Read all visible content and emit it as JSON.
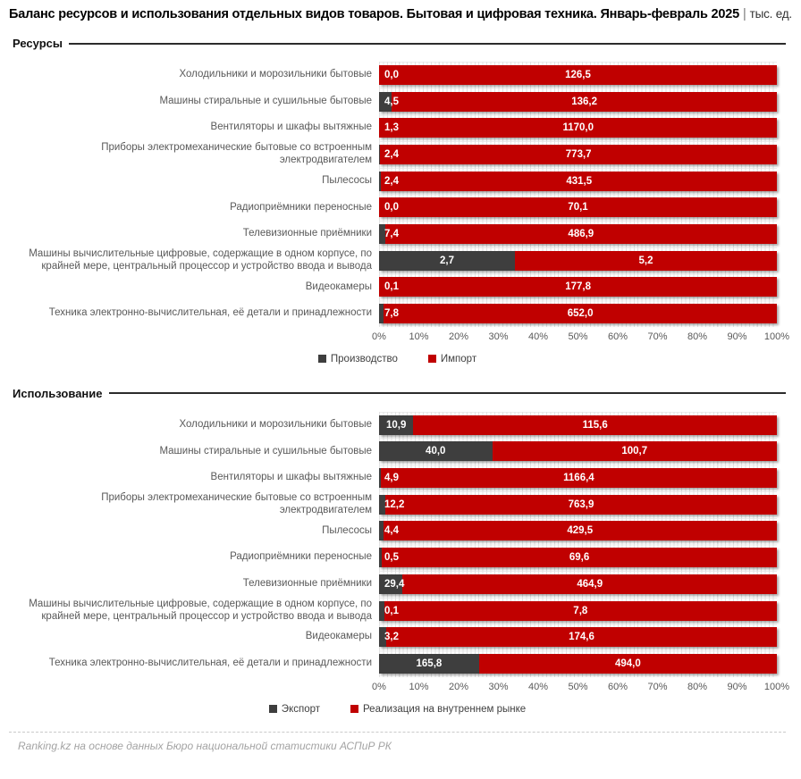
{
  "title": {
    "text": "Баланс ресурсов и использования отдельных видов товаров. Бытовая и цифровая техника. Январь-февраль 2025",
    "separator": "|",
    "unit": "тыс. ед."
  },
  "footer": {
    "source": "Ranking.kz на основе данных Бюро национальной статистики АСПиР РК"
  },
  "colors": {
    "series_dark": "#3E3E3E",
    "series_red": "#C00000",
    "category_text": "#595959",
    "axis_text": "#595959",
    "grid": "#E3E3E3"
  },
  "chart_data": [
    {
      "type": "bar",
      "orientation": "horizontal",
      "stacked": "100%",
      "section_title": "Ресурсы",
      "categories": [
        "Холодильники и морозильники бытовые",
        "Машины стиральные и сушильные бытовые",
        "Вентиляторы и шкафы вытяжные",
        "Приборы электромеханические бытовые со встроенным электродвигателем",
        "Пылесосы",
        "Радиоприёмники переносные",
        "Телевизионные приёмники",
        "Машины вычислительные цифровые, содержащие в одном корпусе, по крайней мере, центральный процессор и устройство ввода и вывода",
        "Видеокамеры",
        "Техника электронно-вычислительная, её детали и принадлежности"
      ],
      "series": [
        {
          "name": "Производство",
          "semantic": "production",
          "color": "#3E3E3E",
          "values": [
            0.0,
            4.5,
            1.3,
            2.4,
            2.4,
            0.0,
            7.4,
            2.7,
            0.1,
            7.8
          ]
        },
        {
          "name": "Импорт",
          "semantic": "import",
          "color": "#C00000",
          "values": [
            126.5,
            136.2,
            1170.0,
            773.7,
            431.5,
            70.1,
            486.9,
            5.2,
            177.8,
            652.0
          ]
        }
      ],
      "x_axis": {
        "min": 0,
        "max": 100,
        "ticks": [
          "0%",
          "10%",
          "20%",
          "30%",
          "40%",
          "50%",
          "60%",
          "70%",
          "80%",
          "90%",
          "100%"
        ]
      },
      "value_label_format": "#0,0 (comma decimal)",
      "legend_position": "bottom-center"
    },
    {
      "type": "bar",
      "orientation": "horizontal",
      "stacked": "100%",
      "section_title": "Использование",
      "categories": [
        "Холодильники и морозильники бытовые",
        "Машины стиральные и сушильные бытовые",
        "Вентиляторы и шкафы вытяжные",
        "Приборы электромеханические бытовые со встроенным электродвигателем",
        "Пылесосы",
        "Радиоприёмники переносные",
        "Телевизионные приёмники",
        "Машины вычислительные цифровые, содержащие в одном корпусе, по крайней мере, центральный процессор и устройство ввода и вывода",
        "Видеокамеры",
        "Техника электронно-вычислительная, её детали и принадлежности"
      ],
      "series": [
        {
          "name": "Экспорт",
          "semantic": "export",
          "color": "#3E3E3E",
          "values": [
            10.9,
            40.0,
            4.9,
            12.2,
            4.4,
            0.5,
            29.4,
            0.1,
            3.2,
            165.8
          ]
        },
        {
          "name": "Реализация на внутреннем рынке",
          "semantic": "domestic-sales",
          "color": "#C00000",
          "values": [
            115.6,
            100.7,
            1166.4,
            763.9,
            429.5,
            69.6,
            464.9,
            7.8,
            174.6,
            494.0
          ]
        }
      ],
      "x_axis": {
        "min": 0,
        "max": 100,
        "ticks": [
          "0%",
          "10%",
          "20%",
          "30%",
          "40%",
          "50%",
          "60%",
          "70%",
          "80%",
          "90%",
          "100%"
        ]
      },
      "value_label_format": "#0,0 (comma decimal)",
      "legend_position": "bottom-center"
    }
  ]
}
